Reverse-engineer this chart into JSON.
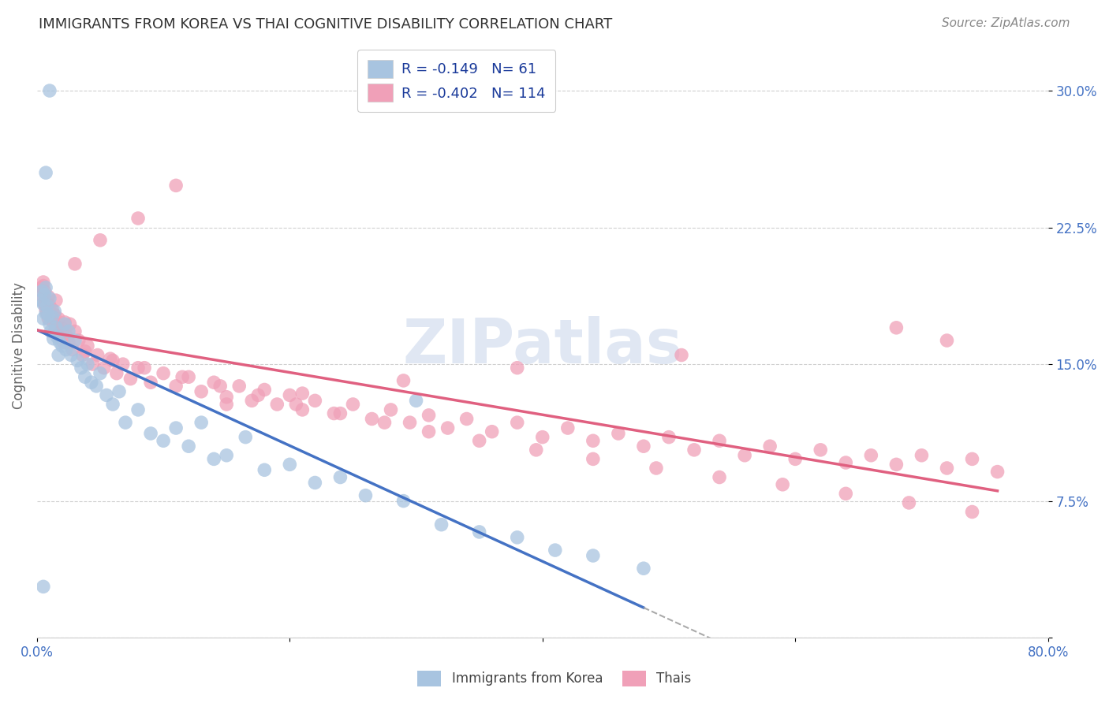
{
  "title": "IMMIGRANTS FROM KOREA VS THAI COGNITIVE DISABILITY CORRELATION CHART",
  "source": "Source: ZipAtlas.com",
  "ylabel": "Cognitive Disability",
  "xlim": [
    0.0,
    0.8
  ],
  "ylim": [
    0.0,
    0.32
  ],
  "xtick_values": [
    0.0,
    0.2,
    0.4,
    0.6,
    0.8
  ],
  "xtick_labels": [
    "0.0%",
    "",
    "",
    "",
    "80.0%"
  ],
  "ytick_values": [
    0.0,
    0.075,
    0.15,
    0.225,
    0.3
  ],
  "ytick_labels": [
    "",
    "7.5%",
    "15.0%",
    "22.5%",
    "30.0%"
  ],
  "grid_color": "#d0d0d0",
  "background_color": "#ffffff",
  "korea_color": "#a8c4e0",
  "thai_color": "#f0a0b8",
  "korea_line_color": "#4472c4",
  "thai_line_color": "#e06080",
  "dash_color": "#aaaaaa",
  "korea_R": -0.149,
  "korea_N": 61,
  "thai_R": -0.402,
  "thai_N": 114,
  "legend_label_korea": "Immigrants from Korea",
  "legend_label_thai": "Thais",
  "title_color": "#333333",
  "source_color": "#888888",
  "tick_label_color": "#4472c4",
  "ylabel_color": "#666666",
  "watermark": "ZIPatlas",
  "watermark_color": "#ccd8ec",
  "korea_x": [
    0.003,
    0.004,
    0.005,
    0.005,
    0.006,
    0.007,
    0.007,
    0.008,
    0.009,
    0.01,
    0.01,
    0.011,
    0.012,
    0.013,
    0.014,
    0.015,
    0.016,
    0.017,
    0.018,
    0.02,
    0.022,
    0.023,
    0.025,
    0.027,
    0.03,
    0.032,
    0.035,
    0.038,
    0.04,
    0.043,
    0.047,
    0.05,
    0.055,
    0.06,
    0.065,
    0.07,
    0.08,
    0.09,
    0.1,
    0.11,
    0.12,
    0.13,
    0.14,
    0.15,
    0.165,
    0.18,
    0.2,
    0.22,
    0.24,
    0.26,
    0.29,
    0.32,
    0.35,
    0.38,
    0.41,
    0.44,
    0.48,
    0.01,
    0.005,
    0.007,
    0.3
  ],
  "korea_y": [
    0.185,
    0.19,
    0.175,
    0.183,
    0.188,
    0.178,
    0.192,
    0.182,
    0.177,
    0.186,
    0.172,
    0.168,
    0.176,
    0.164,
    0.179,
    0.17,
    0.165,
    0.155,
    0.162,
    0.16,
    0.172,
    0.158,
    0.168,
    0.155,
    0.163,
    0.152,
    0.148,
    0.143,
    0.15,
    0.14,
    0.138,
    0.145,
    0.133,
    0.128,
    0.135,
    0.118,
    0.125,
    0.112,
    0.108,
    0.115,
    0.105,
    0.118,
    0.098,
    0.1,
    0.11,
    0.092,
    0.095,
    0.085,
    0.088,
    0.078,
    0.075,
    0.062,
    0.058,
    0.055,
    0.048,
    0.045,
    0.038,
    0.3,
    0.028,
    0.255,
    0.13
  ],
  "thai_x": [
    0.003,
    0.004,
    0.005,
    0.006,
    0.006,
    0.007,
    0.008,
    0.009,
    0.01,
    0.011,
    0.012,
    0.013,
    0.014,
    0.015,
    0.016,
    0.017,
    0.018,
    0.019,
    0.02,
    0.021,
    0.022,
    0.024,
    0.026,
    0.028,
    0.03,
    0.033,
    0.036,
    0.04,
    0.044,
    0.048,
    0.053,
    0.058,
    0.063,
    0.068,
    0.074,
    0.08,
    0.09,
    0.1,
    0.11,
    0.12,
    0.13,
    0.14,
    0.15,
    0.16,
    0.17,
    0.18,
    0.19,
    0.2,
    0.21,
    0.22,
    0.235,
    0.25,
    0.265,
    0.28,
    0.295,
    0.31,
    0.325,
    0.34,
    0.36,
    0.38,
    0.4,
    0.42,
    0.44,
    0.46,
    0.48,
    0.5,
    0.52,
    0.54,
    0.56,
    0.58,
    0.6,
    0.62,
    0.64,
    0.66,
    0.68,
    0.7,
    0.72,
    0.74,
    0.76,
    0.005,
    0.007,
    0.009,
    0.014,
    0.025,
    0.038,
    0.06,
    0.085,
    0.115,
    0.145,
    0.175,
    0.205,
    0.24,
    0.275,
    0.31,
    0.35,
    0.395,
    0.44,
    0.49,
    0.54,
    0.59,
    0.64,
    0.69,
    0.74,
    0.68,
    0.72,
    0.51,
    0.38,
    0.29,
    0.21,
    0.15,
    0.11,
    0.08,
    0.05,
    0.03
  ],
  "thai_y": [
    0.188,
    0.192,
    0.195,
    0.183,
    0.19,
    0.185,
    0.178,
    0.187,
    0.182,
    0.176,
    0.18,
    0.173,
    0.177,
    0.185,
    0.17,
    0.175,
    0.165,
    0.17,
    0.168,
    0.162,
    0.173,
    0.165,
    0.172,
    0.158,
    0.168,
    0.163,
    0.155,
    0.16,
    0.15,
    0.155,
    0.148,
    0.153,
    0.145,
    0.15,
    0.142,
    0.148,
    0.14,
    0.145,
    0.138,
    0.143,
    0.135,
    0.14,
    0.132,
    0.138,
    0.13,
    0.136,
    0.128,
    0.133,
    0.125,
    0.13,
    0.123,
    0.128,
    0.12,
    0.125,
    0.118,
    0.122,
    0.115,
    0.12,
    0.113,
    0.118,
    0.11,
    0.115,
    0.108,
    0.112,
    0.105,
    0.11,
    0.103,
    0.108,
    0.1,
    0.105,
    0.098,
    0.103,
    0.096,
    0.1,
    0.095,
    0.1,
    0.093,
    0.098,
    0.091,
    0.193,
    0.18,
    0.175,
    0.168,
    0.162,
    0.157,
    0.152,
    0.148,
    0.143,
    0.138,
    0.133,
    0.128,
    0.123,
    0.118,
    0.113,
    0.108,
    0.103,
    0.098,
    0.093,
    0.088,
    0.084,
    0.079,
    0.074,
    0.069,
    0.17,
    0.163,
    0.155,
    0.148,
    0.141,
    0.134,
    0.128,
    0.248,
    0.23,
    0.218,
    0.205
  ]
}
